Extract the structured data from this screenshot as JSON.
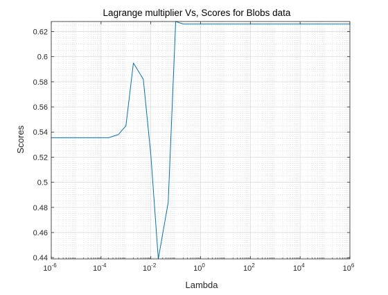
{
  "chart_data": {
    "type": "line",
    "title": "Lagrange multiplier Vs, Scores for Blobs data",
    "xlabel": "Lambda",
    "ylabel": "Scores",
    "xscale": "log",
    "xlim": [
      1e-06,
      1000000.0
    ],
    "ylim": [
      0.439,
      0.628
    ],
    "grid": true,
    "minor_grid": true,
    "x_ticks": [
      {
        "base": "10",
        "exp": "-6"
      },
      {
        "base": "10",
        "exp": "-4"
      },
      {
        "base": "10",
        "exp": "-2"
      },
      {
        "base": "10",
        "exp": "0"
      },
      {
        "base": "10",
        "exp": "2"
      },
      {
        "base": "10",
        "exp": "4"
      },
      {
        "base": "10",
        "exp": "6"
      }
    ],
    "y_ticks": [
      "0.44",
      "0.46",
      "0.48",
      "0.5",
      "0.52",
      "0.54",
      "0.56",
      "0.58",
      "0.6",
      "0.62"
    ],
    "series": [
      {
        "color": "#0072BD",
        "x": [
          1e-06,
          1e-05,
          0.0001,
          0.0002,
          0.0005,
          0.001,
          0.002,
          0.005,
          0.01,
          0.02,
          0.05,
          0.1,
          0.2,
          0.5,
          1,
          10,
          100,
          1000,
          10000,
          100000,
          1000000
        ],
        "y": [
          0.5355,
          0.5355,
          0.5355,
          0.5355,
          0.538,
          0.545,
          0.595,
          0.582,
          0.522,
          0.439,
          0.484,
          0.628,
          0.626,
          0.626,
          0.626,
          0.626,
          0.626,
          0.626,
          0.626,
          0.626,
          0.626
        ]
      }
    ]
  }
}
